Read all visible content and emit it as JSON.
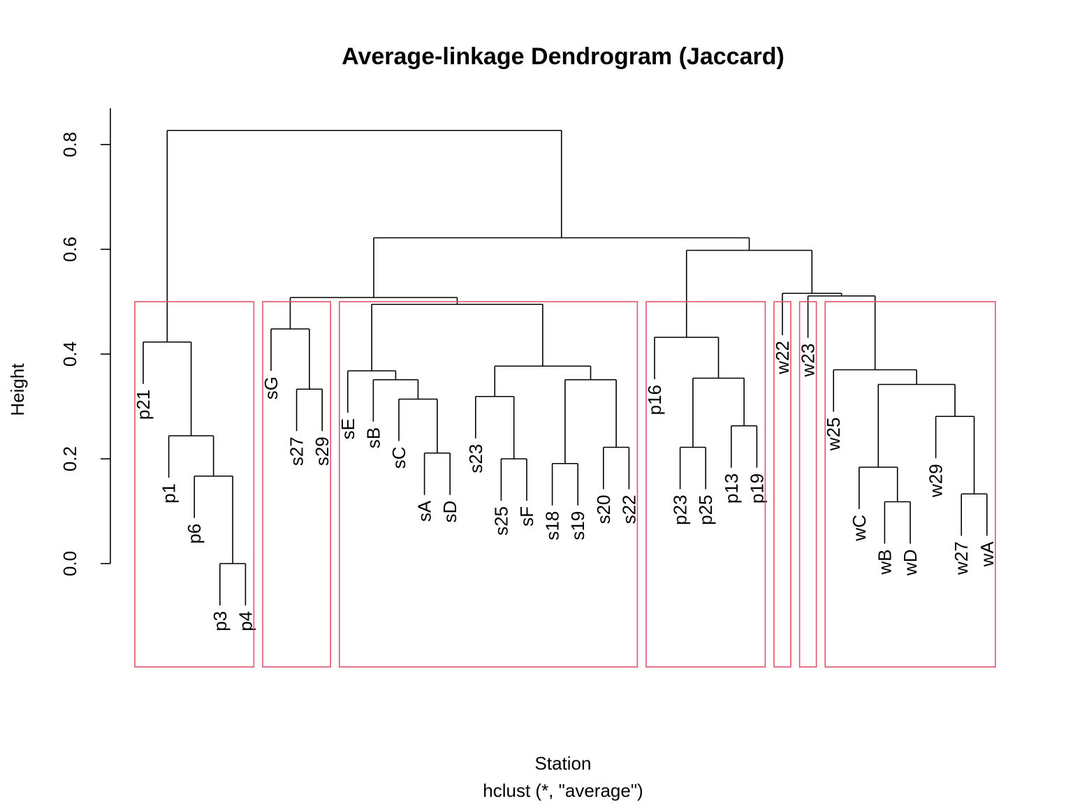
{
  "chart_data": {
    "type": "dendrogram",
    "title": "Average-linkage Dendrogram (Jaccard)",
    "xlabel": "Station",
    "subtitle": "hclust (*, \"average\")",
    "ylabel": "Height",
    "ylim": [
      0,
      0.8
    ],
    "yticks": [
      "0.0",
      "0.2",
      "0.4",
      "0.6",
      "0.8"
    ],
    "ytick_values": [
      0,
      0.2,
      0.4,
      0.6,
      0.8
    ],
    "grid": false,
    "leaf_order": [
      "p21",
      "p1",
      "p6",
      "p3",
      "p4",
      "sG",
      "s27",
      "s29",
      "sE",
      "sB",
      "sC",
      "sA",
      "sD",
      "s23",
      "s25",
      "sF",
      "s18",
      "s19",
      "s20",
      "s22",
      "p16",
      "p23",
      "p25",
      "p13",
      "p19",
      "w22",
      "w23",
      "w25",
      "wC",
      "wB",
      "wD",
      "w29",
      "w27",
      "wA"
    ],
    "merges": [
      {
        "left": "p3",
        "right": "p4",
        "height": 0.0
      },
      {
        "left": "p6",
        "right": "(p3,p4)",
        "height": 0.167
      },
      {
        "left": "p1",
        "right": "(p6,p3,p4)",
        "height": 0.244
      },
      {
        "left": "p21",
        "right": "(p1,p6,p3,p4)",
        "height": 0.423
      },
      {
        "left": "s27",
        "right": "s29",
        "height": 0.333
      },
      {
        "left": "sG",
        "right": "(s27,s29)",
        "height": 0.448
      },
      {
        "left": "sA",
        "right": "sD",
        "height": 0.211
      },
      {
        "left": "sC",
        "right": "(sA,sD)",
        "height": 0.314
      },
      {
        "left": "sB",
        "right": "(sC,sA,sD)",
        "height": 0.351
      },
      {
        "left": "sE",
        "right": "(sB,sC,sA,sD)",
        "height": 0.368
      },
      {
        "left": "s25",
        "right": "sF",
        "height": 0.2
      },
      {
        "left": "s23",
        "right": "(s25,sF)",
        "height": 0.319
      },
      {
        "left": "s18",
        "right": "s19",
        "height": 0.191
      },
      {
        "left": "s20",
        "right": "s22",
        "height": 0.222
      },
      {
        "left": "(s18,s19)",
        "right": "(s20,s22)",
        "height": 0.351
      },
      {
        "left": "(s23,s25,sF)",
        "right": "(s18,s19,s20,s22)",
        "height": 0.377
      },
      {
        "left": "(sE..sD)",
        "right": "(s23..s22)",
        "height": 0.495
      },
      {
        "left": "(sG,s27,s29)",
        "right": "(sE..s22)",
        "height": 0.508
      },
      {
        "left": "p23",
        "right": "p25",
        "height": 0.222
      },
      {
        "left": "p13",
        "right": "p19",
        "height": 0.263
      },
      {
        "left": "(p23,p25)",
        "right": "(p13,p19)",
        "height": 0.354
      },
      {
        "left": "p16",
        "right": "(p23,p25,p13,p19)",
        "height": 0.432
      },
      {
        "left": "wB",
        "right": "wD",
        "height": 0.118
      },
      {
        "left": "wC",
        "right": "(wB,wD)",
        "height": 0.184
      },
      {
        "left": "w27",
        "right": "wA",
        "height": 0.133
      },
      {
        "left": "w29",
        "right": "(w27,wA)",
        "height": 0.281
      },
      {
        "left": "(wC,wB,wD)",
        "right": "(w29,w27,wA)",
        "height": 0.342
      },
      {
        "left": "w25",
        "right": "(wC..wA)",
        "height": 0.37
      },
      {
        "left": "w23",
        "right": "(w25..wA)",
        "height": 0.511
      },
      {
        "left": "w22",
        "right": "(w23..wA)",
        "height": 0.516
      },
      {
        "left": "(p16..p19)",
        "right": "(w22..wA)",
        "height": 0.598
      },
      {
        "left": "(sG..s22)",
        "right": "(p16..wA)",
        "height": 0.622
      },
      {
        "left": "(p21..p4)",
        "right": "(sG..wA)",
        "height": 0.827
      }
    ],
    "cluster_boxes": {
      "cut_height": 0.5,
      "color": "#DF536B",
      "groups": [
        [
          "p21",
          "p1",
          "p6",
          "p3",
          "p4"
        ],
        [
          "sG",
          "s27",
          "s29"
        ],
        [
          "sE",
          "sB",
          "sC",
          "sA",
          "sD",
          "s23",
          "s25",
          "sF",
          "s18",
          "s19",
          "s20",
          "s22"
        ],
        [
          "p16",
          "p23",
          "p25",
          "p13",
          "p19"
        ],
        [
          "w22"
        ],
        [
          "w23"
        ],
        [
          "w25",
          "wC",
          "wB",
          "wD",
          "w29",
          "w27",
          "wA"
        ]
      ]
    }
  }
}
